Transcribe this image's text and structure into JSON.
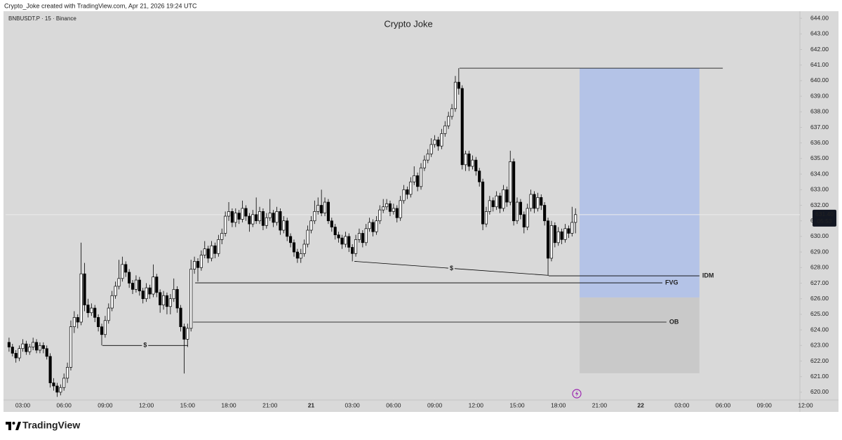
{
  "chart_data": {
    "type": "candlestick",
    "attribution": "Crypto_Joke created with TradingView.com, Apr 21, 2026 19:24 UTC",
    "symbol": "BNBUSDT.P · 15 · Binance",
    "title": "Crypto Joke",
    "brand": "TradingView",
    "up_color": "#ffffff",
    "down_color": "#000000",
    "wick_color": "#000000",
    "grid": false,
    "xlim": [
      -1,
      232
    ],
    "ylim": [
      619.5,
      644.5
    ],
    "xticks": [
      {
        "value": 4,
        "label": "03:00"
      },
      {
        "value": 16,
        "label": "06:00"
      },
      {
        "value": 28,
        "label": "09:00"
      },
      {
        "value": 40,
        "label": "12:00"
      },
      {
        "value": 52,
        "label": "15:00"
      },
      {
        "value": 64,
        "label": "18:00"
      },
      {
        "value": 76,
        "label": "21:00"
      },
      {
        "value": 88,
        "label": "21"
      },
      {
        "value": 100,
        "label": "03:00"
      },
      {
        "value": 112,
        "label": "06:00"
      },
      {
        "value": 124,
        "label": "09:00"
      },
      {
        "value": 136,
        "label": "12:00"
      },
      {
        "value": 148,
        "label": "15:00"
      },
      {
        "value": 160,
        "label": "18:00"
      },
      {
        "value": 172,
        "label": "21:00"
      },
      {
        "value": 184,
        "label": "22"
      },
      {
        "value": 196,
        "label": "03:00"
      },
      {
        "value": 208,
        "label": "06:00"
      },
      {
        "value": 220,
        "label": "09:00"
      },
      {
        "value": 232,
        "label": "12:00"
      }
    ],
    "yticks": [
      {
        "value": 620,
        "label": "620.00"
      },
      {
        "value": 621,
        "label": "621.00"
      },
      {
        "value": 622,
        "label": "622.00"
      },
      {
        "value": 623,
        "label": "623.00"
      },
      {
        "value": 624,
        "label": "624.00"
      },
      {
        "value": 625,
        "label": "625.00"
      },
      {
        "value": 626,
        "label": "626.00"
      },
      {
        "value": 627,
        "label": "627.00"
      },
      {
        "value": 628,
        "label": "628.00"
      },
      {
        "value": 629,
        "label": "629.00"
      },
      {
        "value": 630,
        "label": "630.00"
      },
      {
        "value": 631,
        "label": "631.00"
      },
      {
        "value": 632,
        "label": "632.00"
      },
      {
        "value": 633,
        "label": "633.00"
      },
      {
        "value": 634,
        "label": "634.00"
      },
      {
        "value": 635,
        "label": "635.00"
      },
      {
        "value": 636,
        "label": "636.00"
      },
      {
        "value": 637,
        "label": "637.00"
      },
      {
        "value": 638,
        "label": "638.00"
      },
      {
        "value": 639,
        "label": "639.00"
      },
      {
        "value": 640,
        "label": "640.00"
      },
      {
        "value": 641,
        "label": "641.00"
      },
      {
        "value": 642,
        "label": "642.00"
      },
      {
        "value": 643,
        "label": "643.00"
      },
      {
        "value": 644,
        "label": "644.00"
      }
    ],
    "current_price": {
      "value": 631.4,
      "label": "631.40"
    },
    "countdown": "05:53",
    "open": [
      623.2,
      622.9,
      622.5,
      622.2,
      622.8,
      623.1,
      622.6,
      622.9,
      623.2,
      622.7,
      623.0,
      622.8,
      622.3,
      620.6,
      620.4,
      620.0,
      620.3,
      620.9,
      621.6,
      624.2,
      624.8,
      624.5,
      627.6,
      625.6,
      625.1,
      625.4,
      624.8,
      624.2,
      623.7,
      624.6,
      625.4,
      626.2,
      626.8,
      627.3,
      628.2,
      627.7,
      627.0,
      626.6,
      627.2,
      626.5,
      626.0,
      626.7,
      626.3,
      627.4,
      626.4,
      625.6,
      626.2,
      625.5,
      626.0,
      626.6,
      625.4,
      624.2,
      623.4,
      624.1,
      627.9,
      628.4,
      628.0,
      628.8,
      629.2,
      628.6,
      629.4,
      628.9,
      629.8,
      630.2,
      631.3,
      631.6,
      630.9,
      631.5,
      631.1,
      631.8,
      631.3,
      630.8,
      631.4,
      631.0,
      631.6,
      630.7,
      631.2,
      631.5,
      630.9,
      631.6,
      630.4,
      631.0,
      630.0,
      629.6,
      629.0,
      628.6,
      628.9,
      629.5,
      630.4,
      631.0,
      631.6,
      632.0,
      631.5,
      632.2,
      631.0,
      630.6,
      630.1,
      629.9,
      629.5,
      630.0,
      629.3,
      628.9,
      629.8,
      630.2,
      629.6,
      630.5,
      630.9,
      630.3,
      631.0,
      631.7,
      631.9,
      632.1,
      631.6,
      631.8,
      631.2,
      632.3,
      633.0,
      632.7,
      633.5,
      633.9,
      633.2,
      634.4,
      634.9,
      635.3,
      635.9,
      636.2,
      635.8,
      636.6,
      637.1,
      637.7,
      638.2,
      639.9,
      639.5,
      634.6,
      635.3,
      634.5,
      634.9,
      634.2,
      633.5,
      630.8,
      631.6,
      632.3,
      631.9,
      632.6,
      631.8,
      633.0,
      632.2,
      634.8,
      631.0,
      632.2,
      631.4,
      630.6,
      631.8,
      632.7,
      631.8,
      632.5,
      632.0,
      631.0,
      628.6,
      630.7,
      629.6,
      630.3,
      629.8,
      630.5,
      630.2,
      630.9
    ],
    "high": [
      623.5,
      623.1,
      622.7,
      623.0,
      623.4,
      623.3,
      623.1,
      623.5,
      623.4,
      623.2,
      623.2,
      623.0,
      622.5,
      620.9,
      620.6,
      620.5,
      621.2,
      621.9,
      624.6,
      625.2,
      625.0,
      629.6,
      628.3,
      626.0,
      625.7,
      625.6,
      625.0,
      624.4,
      624.9,
      625.7,
      626.5,
      627.1,
      628.5,
      628.7,
      628.4,
      627.9,
      627.2,
      627.5,
      627.4,
      626.7,
      627.0,
      626.9,
      628.2,
      627.6,
      626.6,
      626.5,
      626.4,
      626.3,
      627.3,
      626.8,
      625.6,
      624.4,
      624.4,
      628.5,
      628.7,
      628.6,
      629.1,
      629.7,
      629.4,
      629.7,
      629.6,
      630.1,
      630.5,
      631.6,
      632.2,
      631.8,
      631.8,
      631.7,
      632.3,
      632.0,
      631.5,
      631.7,
      632.5,
      631.9,
      631.8,
      631.5,
      632.4,
      631.7,
      631.9,
      631.8,
      631.3,
      631.2,
      630.2,
      629.8,
      629.2,
      629.2,
      629.8,
      630.7,
      631.3,
      632.3,
      632.5,
      633.0,
      632.5,
      632.4,
      631.2,
      630.8,
      630.3,
      630.1,
      630.3,
      630.2,
      629.5,
      630.1,
      630.5,
      630.4,
      630.8,
      631.2,
      631.1,
      631.3,
      632.0,
      632.4,
      632.4,
      632.3,
      632.1,
      632.0,
      632.6,
      633.3,
      633.2,
      633.8,
      634.5,
      634.1,
      634.7,
      635.2,
      635.6,
      636.3,
      636.5,
      636.4,
      636.9,
      637.4,
      638.0,
      638.5,
      640.3,
      640.8,
      639.7,
      635.5,
      635.5,
      635.2,
      635.1,
      634.4,
      633.7,
      631.9,
      632.6,
      632.5,
      632.9,
      632.8,
      633.3,
      633.2,
      635.5,
      635.0,
      632.5,
      632.4,
      631.6,
      632.1,
      633.0,
      632.9,
      632.8,
      632.7,
      632.2,
      631.2,
      631.0,
      630.9,
      630.6,
      630.5,
      630.8,
      630.7,
      631.9,
      631.8
    ],
    "low": [
      622.6,
      622.3,
      621.9,
      622.0,
      622.6,
      622.4,
      622.4,
      622.7,
      622.5,
      622.5,
      622.5,
      622.1,
      620.3,
      620.1,
      619.7,
      619.8,
      620.1,
      620.6,
      621.4,
      623.8,
      624.1,
      624.3,
      625.2,
      624.8,
      624.9,
      624.5,
      623.9,
      623.0,
      623.5,
      624.4,
      625.2,
      626.0,
      626.6,
      627.1,
      627.4,
      626.7,
      626.3,
      626.4,
      626.2,
      625.7,
      625.8,
      626.0,
      626.1,
      626.1,
      625.1,
      625.3,
      625.0,
      625.0,
      625.8,
      625.1,
      623.9,
      621.2,
      622.9,
      623.9,
      627.6,
      627.1,
      627.8,
      628.6,
      628.3,
      628.4,
      628.6,
      628.7,
      629.5,
      630.0,
      631.0,
      630.6,
      630.6,
      630.8,
      630.9,
      631.0,
      630.3,
      630.6,
      630.8,
      630.8,
      630.4,
      630.5,
      631.0,
      630.6,
      630.7,
      630.1,
      630.2,
      629.7,
      629.3,
      628.7,
      628.3,
      628.3,
      628.7,
      629.3,
      630.2,
      630.8,
      631.4,
      631.3,
      631.3,
      630.8,
      630.3,
      629.8,
      629.6,
      629.2,
      629.3,
      629.0,
      628.4,
      628.7,
      629.6,
      629.3,
      629.4,
      630.3,
      630.0,
      630.1,
      630.8,
      631.5,
      631.7,
      631.3,
      631.4,
      630.9,
      631.0,
      632.1,
      632.4,
      632.5,
      633.3,
      632.9,
      633.0,
      634.2,
      634.7,
      635.1,
      635.7,
      635.5,
      635.6,
      636.4,
      636.9,
      637.5,
      638.0,
      639.1,
      634.3,
      634.2,
      634.2,
      634.3,
      633.9,
      633.2,
      630.4,
      630.6,
      631.4,
      631.6,
      631.7,
      631.5,
      631.6,
      631.9,
      632.0,
      630.7,
      630.8,
      631.1,
      630.2,
      630.4,
      631.6,
      631.5,
      631.6,
      631.7,
      630.7,
      627.5,
      628.4,
      629.3,
      629.4,
      629.5,
      629.6,
      629.9,
      630.0,
      630.2
    ],
    "close": [
      622.9,
      622.5,
      622.2,
      622.8,
      623.1,
      622.6,
      622.9,
      623.2,
      622.7,
      623.0,
      622.8,
      622.3,
      620.6,
      620.4,
      620.0,
      620.3,
      620.9,
      621.6,
      624.2,
      624.8,
      624.5,
      627.6,
      625.6,
      625.1,
      625.4,
      624.8,
      624.2,
      623.7,
      624.6,
      625.4,
      626.2,
      626.8,
      627.3,
      628.2,
      627.7,
      627.0,
      626.6,
      627.2,
      626.5,
      626.0,
      626.7,
      626.3,
      627.4,
      626.4,
      625.6,
      626.2,
      625.5,
      626.0,
      626.6,
      625.4,
      624.2,
      623.4,
      624.1,
      627.9,
      628.4,
      628.0,
      628.8,
      629.2,
      628.6,
      629.4,
      628.9,
      629.8,
      630.2,
      631.3,
      631.6,
      630.9,
      631.5,
      631.1,
      631.8,
      631.3,
      630.8,
      631.4,
      631.0,
      631.6,
      630.7,
      631.2,
      631.5,
      630.9,
      631.6,
      630.4,
      631.0,
      630.0,
      629.6,
      629.0,
      628.6,
      628.9,
      629.5,
      630.4,
      631.0,
      631.6,
      632.0,
      631.5,
      632.2,
      631.0,
      630.6,
      630.1,
      629.9,
      629.5,
      630.0,
      629.3,
      628.9,
      629.8,
      630.2,
      629.6,
      630.5,
      630.9,
      630.3,
      631.0,
      631.7,
      631.9,
      632.1,
      631.6,
      631.8,
      631.2,
      632.3,
      633.0,
      632.7,
      633.5,
      633.9,
      633.2,
      634.4,
      634.9,
      635.3,
      635.9,
      636.2,
      635.8,
      636.6,
      637.1,
      637.7,
      638.2,
      639.9,
      639.5,
      634.6,
      635.3,
      634.5,
      634.9,
      634.2,
      633.5,
      630.8,
      631.6,
      632.3,
      631.9,
      632.6,
      631.8,
      633.0,
      632.2,
      634.8,
      631.0,
      632.2,
      631.4,
      630.6,
      631.8,
      632.7,
      631.8,
      632.5,
      632.0,
      631.0,
      628.6,
      630.7,
      629.6,
      630.3,
      629.8,
      630.5,
      630.2,
      630.9,
      631.4
    ],
    "zones": [
      {
        "x": [
          166.2,
          201.1
        ],
        "y": [
          626.08,
          640.8
        ],
        "color": "#b4c3e7"
      },
      {
        "x": [
          166.2,
          201.1
        ],
        "y": [
          621.22,
          626.08
        ],
        "color": "#c9c9c9"
      }
    ],
    "lines": [
      {
        "x": [
          131.2,
          207.9
        ],
        "y": [
          640.8,
          640.8
        ],
        "color": "#000000"
      },
      {
        "label": "$",
        "x": [
          27.2,
          52.1
        ],
        "y": [
          623.0,
          623.0
        ],
        "color": "#000000"
      },
      {
        "label": "$",
        "x": [
          100.6,
          157.2
        ],
        "y": [
          628.4,
          627.5
        ],
        "color": "#000000"
      },
      {
        "label": "IDM",
        "x": [
          157.2,
          201.1
        ],
        "y": [
          627.47,
          627.47
        ],
        "color": "#000000"
      },
      {
        "label": "FVG",
        "x": [
          54.2,
          190.3
        ],
        "y": [
          627.02,
          627.02
        ],
        "color": "#1c2b73"
      },
      {
        "label": "OB",
        "x": [
          53.6,
          191.5
        ],
        "y": [
          624.5,
          624.5
        ],
        "color": "#555555"
      }
    ]
  }
}
